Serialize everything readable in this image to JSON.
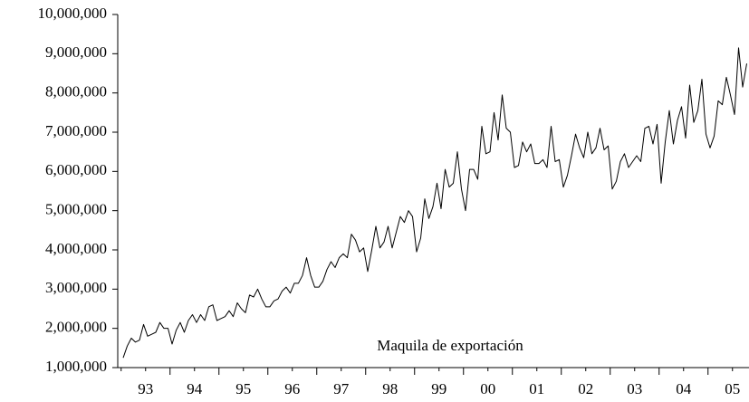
{
  "chart_data": {
    "type": "line",
    "annotation": "Maquila de exportación",
    "categories": [
      null,
      null,
      null,
      null,
      null,
      "93",
      null,
      null,
      null,
      null,
      null,
      null,
      null,
      null,
      null,
      null,
      null,
      "94",
      null,
      null,
      null,
      null,
      null,
      null,
      null,
      null,
      null,
      null,
      null,
      "95",
      null,
      null,
      null,
      null,
      null,
      null,
      null,
      null,
      null,
      null,
      null,
      "96",
      null,
      null,
      null,
      null,
      null,
      null,
      null,
      null,
      null,
      null,
      null,
      "97",
      null,
      null,
      null,
      null,
      null,
      null,
      null,
      null,
      null,
      null,
      null,
      "98",
      null,
      null,
      null,
      null,
      null,
      null,
      null,
      null,
      null,
      null,
      null,
      "99",
      null,
      null,
      null,
      null,
      null,
      null,
      null,
      null,
      null,
      null,
      null,
      "00",
      null,
      null,
      null,
      null,
      null,
      null,
      null,
      null,
      null,
      null,
      null,
      "01",
      null,
      null,
      null,
      null,
      null,
      null,
      null,
      null,
      null,
      null,
      null,
      "02",
      null,
      null,
      null,
      null,
      null,
      null,
      null,
      null,
      null,
      null,
      null,
      "03",
      null,
      null,
      null,
      null,
      null,
      null,
      null,
      null,
      null,
      null,
      null,
      "04",
      null,
      null,
      null,
      null,
      null,
      null,
      null,
      null,
      null,
      null,
      null,
      "05",
      null,
      null,
      null,
      null
    ],
    "values": [
      1250000,
      1550000,
      1750000,
      1650000,
      1700000,
      2100000,
      1800000,
      1850000,
      1900000,
      2150000,
      2000000,
      2000000,
      1600000,
      1950000,
      2150000,
      1900000,
      2200000,
      2350000,
      2150000,
      2350000,
      2200000,
      2550000,
      2600000,
      2200000,
      2250000,
      2300000,
      2450000,
      2300000,
      2650000,
      2500000,
      2400000,
      2850000,
      2800000,
      3000000,
      2750000,
      2550000,
      2550000,
      2700000,
      2750000,
      2950000,
      3050000,
      2900000,
      3150000,
      3150000,
      3350000,
      3800000,
      3350000,
      3050000,
      3050000,
      3200000,
      3500000,
      3700000,
      3550000,
      3800000,
      3900000,
      3800000,
      4400000,
      4250000,
      3950000,
      4050000,
      3450000,
      4000000,
      4600000,
      4050000,
      4200000,
      4600000,
      4050000,
      4450000,
      4850000,
      4700000,
      5000000,
      4850000,
      3950000,
      4300000,
      5300000,
      4800000,
      5100000,
      5700000,
      5050000,
      6050000,
      5600000,
      5700000,
      6500000,
      5550000,
      5000000,
      6050000,
      6050000,
      5800000,
      7150000,
      6450000,
      6500000,
      7500000,
      6800000,
      7950000,
      7100000,
      7000000,
      6100000,
      6150000,
      6750000,
      6500000,
      6700000,
      6200000,
      6200000,
      6300000,
      6100000,
      7150000,
      6250000,
      6300000,
      5600000,
      5900000,
      6400000,
      6950000,
      6600000,
      6350000,
      7000000,
      6450000,
      6600000,
      7100000,
      6550000,
      6650000,
      5550000,
      5750000,
      6250000,
      6450000,
      6100000,
      6250000,
      6400000,
      6250000,
      7100000,
      7150000,
      6700000,
      7200000,
      5700000,
      6750000,
      7550000,
      6700000,
      7300000,
      7650000,
      6850000,
      8200000,
      7250000,
      7550000,
      8350000,
      6950000,
      6600000,
      6900000,
      7800000,
      7700000,
      8400000,
      7950000,
      7450000,
      9150000,
      8150000,
      8750000
    ],
    "color": "#000000",
    "ylim": [
      1000000,
      10000000
    ],
    "yticks": [
      {
        "value": 1000000,
        "label": "1,000,000"
      },
      {
        "value": 2000000,
        "label": "2,000,000"
      },
      {
        "value": 3000000,
        "label": "3,000,000"
      },
      {
        "value": 4000000,
        "label": "4,000,000"
      },
      {
        "value": 5000000,
        "label": "5,000,000"
      },
      {
        "value": 6000000,
        "label": "6,000,000"
      },
      {
        "value": 7000000,
        "label": "7,000,000"
      },
      {
        "value": 8000000,
        "label": "8,000,000"
      },
      {
        "value": 9000000,
        "label": "9,000,000"
      },
      {
        "value": 10000000,
        "label": "10,000,000"
      }
    ]
  }
}
